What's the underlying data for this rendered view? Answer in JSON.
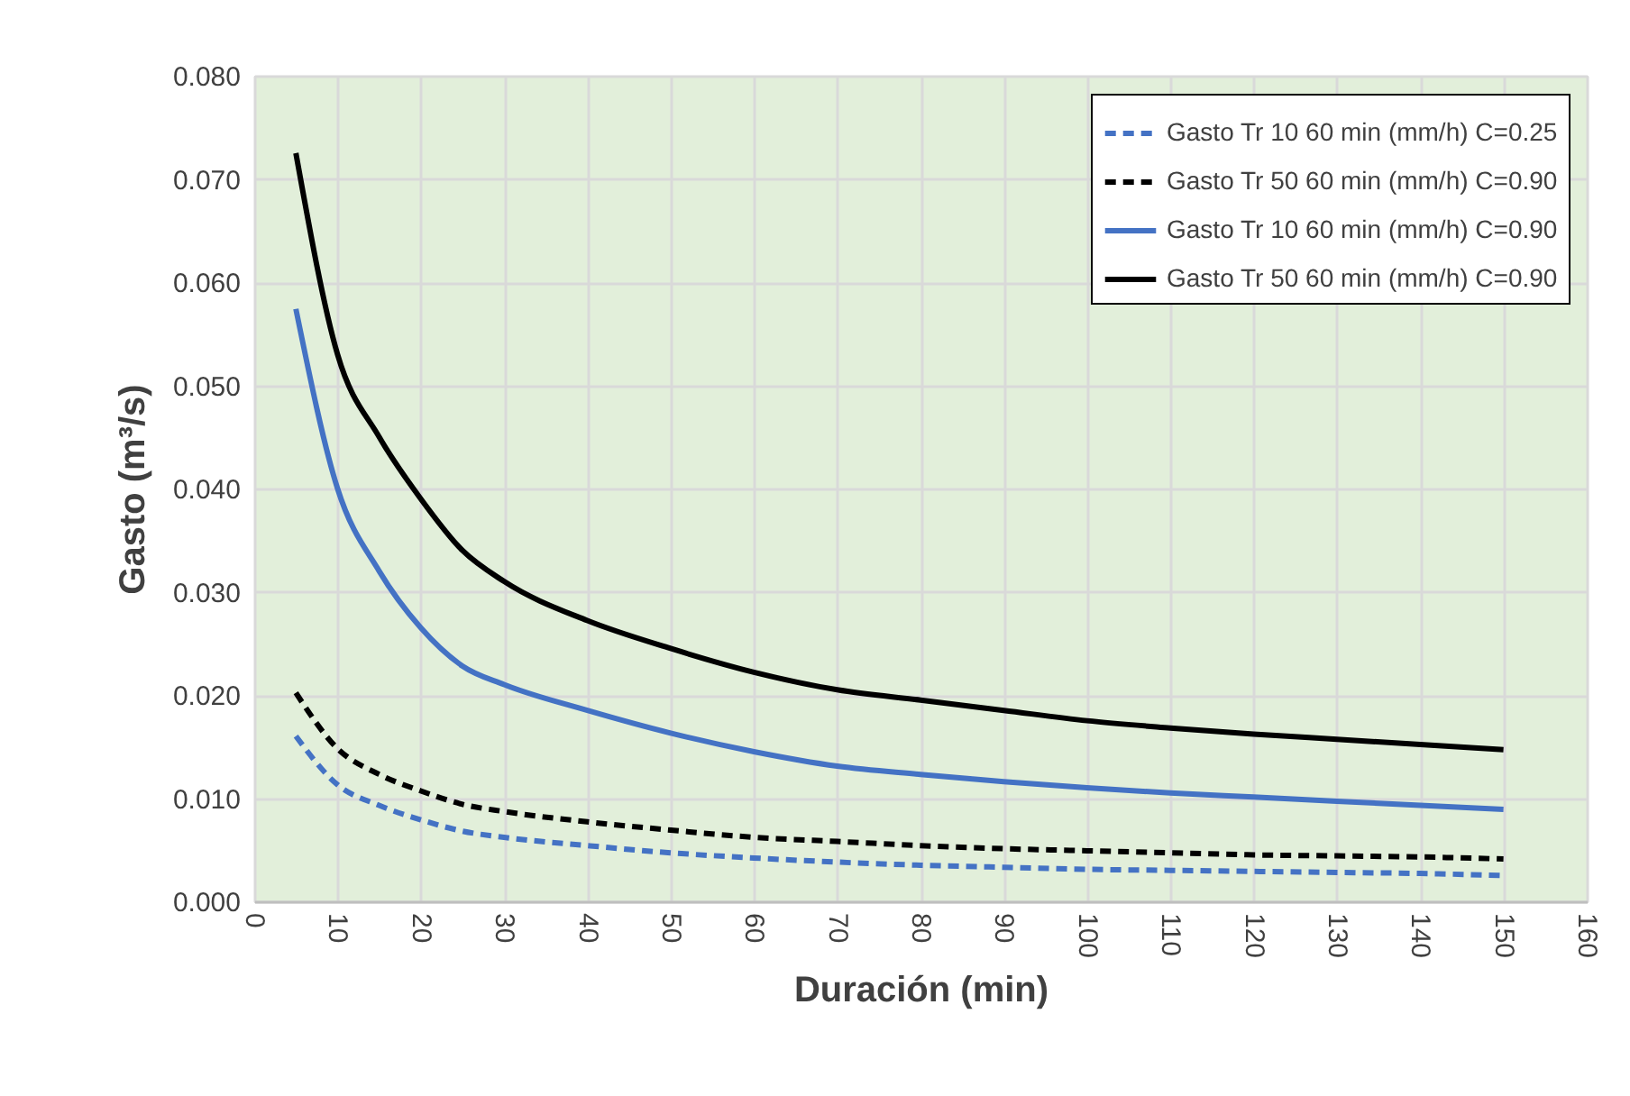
{
  "chart_data": {
    "type": "line",
    "xlabel": "Duración (min)",
    "ylabel": "Gasto (m³/s)",
    "x": [
      5,
      10,
      15,
      20,
      25,
      30,
      40,
      50,
      60,
      70,
      80,
      90,
      100,
      110,
      120,
      130,
      140,
      150
    ],
    "series": [
      {
        "name": "Gasto Tr 10 60 min (mm/h) C=0.25",
        "color": "#4472c4",
        "line_style": "dashed",
        "values": [
          0.016,
          0.0113,
          0.0093,
          0.0079,
          0.0068,
          0.0062,
          0.0054,
          0.0047,
          0.0042,
          0.0038,
          0.0035,
          0.0033,
          0.0031,
          0.003,
          0.0029,
          0.0028,
          0.0027,
          0.0025
        ]
      },
      {
        "name": "Gasto Tr 50 60 min (mm/h) C=0.90",
        "color": "#000000",
        "line_style": "dashed",
        "values": [
          0.0202,
          0.0148,
          0.0123,
          0.0107,
          0.0094,
          0.0087,
          0.0077,
          0.0069,
          0.0062,
          0.0058,
          0.0054,
          0.0051,
          0.0049,
          0.0047,
          0.0045,
          0.0044,
          0.0043,
          0.0041
        ]
      },
      {
        "name": "Gasto Tr 10 60 min (mm/h) C=0.90",
        "color": "#4472c4",
        "line_style": "solid",
        "values": [
          0.0574,
          0.04,
          0.032,
          0.0265,
          0.0228,
          0.021,
          0.0185,
          0.0163,
          0.0145,
          0.0131,
          0.0123,
          0.0116,
          0.011,
          0.0105,
          0.0101,
          0.0097,
          0.0093,
          0.0089
        ]
      },
      {
        "name": "Gasto Tr 50 60 min (mm/h) C=0.90",
        "color": "#000000",
        "line_style": "solid",
        "values": [
          0.0725,
          0.053,
          0.045,
          0.039,
          0.034,
          0.031,
          0.0272,
          0.0245,
          0.0222,
          0.0205,
          0.0195,
          0.0185,
          0.0175,
          0.0168,
          0.0162,
          0.0157,
          0.0152,
          0.0147
        ]
      }
    ],
    "xlim": [
      0,
      160
    ],
    "xticks": [
      0,
      10,
      20,
      30,
      40,
      50,
      60,
      70,
      80,
      90,
      100,
      110,
      120,
      130,
      140,
      150,
      160
    ],
    "ylim": [
      0,
      0.08
    ],
    "yticks": [
      {
        "value": 0,
        "label": "0.000"
      },
      {
        "value": 0.01,
        "label": "0.010"
      },
      {
        "value": 0.02,
        "label": "0.020"
      },
      {
        "value": 0.03,
        "label": "0.030"
      },
      {
        "value": 0.04,
        "label": "0.040"
      },
      {
        "value": 0.05,
        "label": "0.050"
      },
      {
        "value": 0.06,
        "label": "0.060"
      },
      {
        "value": 0.07,
        "label": "0.070"
      },
      {
        "value": 0.08,
        "label": "0.080"
      }
    ],
    "grid": true,
    "legend": "top right",
    "marker": "none"
  }
}
